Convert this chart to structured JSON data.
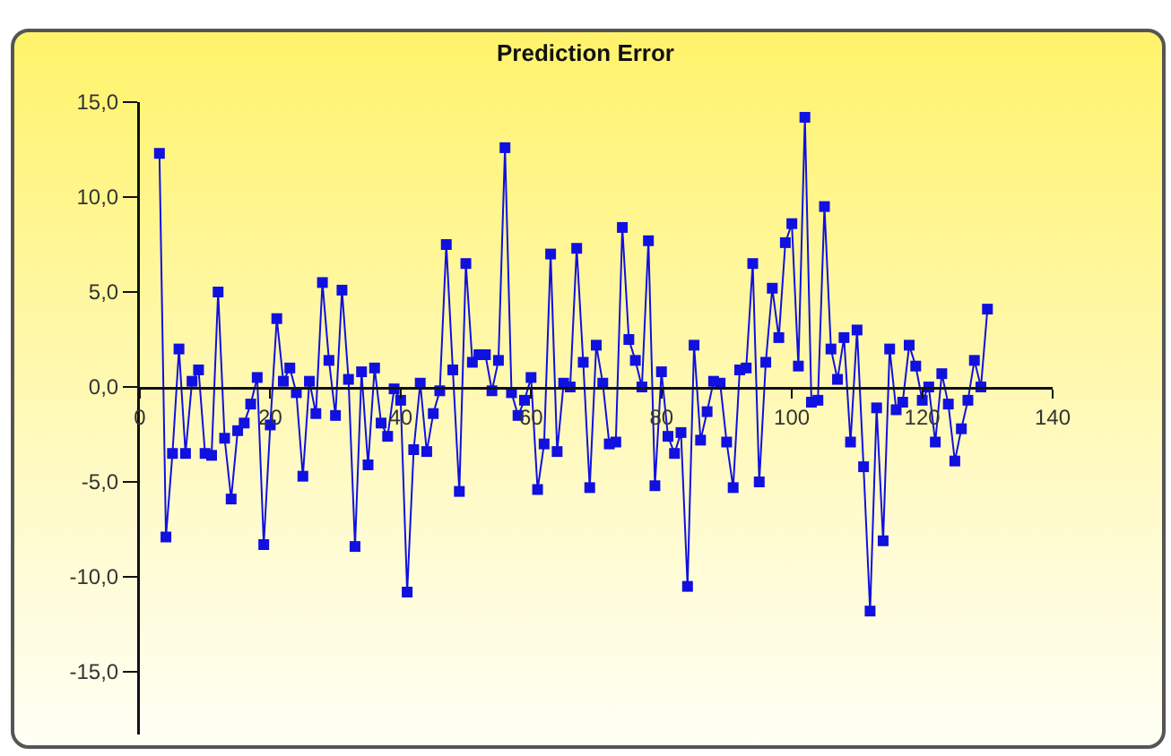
{
  "chart_data": {
    "type": "line",
    "title": "Prediction Error",
    "x": [
      3,
      4,
      5,
      6,
      7,
      8,
      9,
      10,
      11,
      12,
      13,
      14,
      15,
      16,
      17,
      18,
      19,
      20,
      21,
      22,
      23,
      24,
      25,
      26,
      27,
      28,
      29,
      30,
      31,
      32,
      33,
      34,
      35,
      36,
      37,
      38,
      39,
      40,
      41,
      42,
      43,
      44,
      45,
      46,
      47,
      48,
      49,
      50,
      51,
      52,
      53,
      54,
      55,
      56,
      57,
      58,
      59,
      60,
      61,
      62,
      63,
      64,
      65,
      66,
      67,
      68,
      69,
      70,
      71,
      72,
      73,
      74,
      75,
      76,
      77,
      78,
      79,
      80,
      81,
      82,
      83,
      84,
      85,
      86,
      87,
      88,
      89,
      90,
      91,
      92,
      93,
      94,
      95,
      96,
      97,
      98,
      99,
      100,
      101,
      102,
      103,
      104,
      105,
      106,
      107,
      108,
      109,
      110,
      111,
      112,
      113,
      114,
      115,
      116,
      117,
      118,
      119,
      120,
      121,
      122,
      123,
      124,
      125,
      126,
      127,
      128,
      129,
      130
    ],
    "series": [
      {
        "color": "#1010e0",
        "values": [
          12.3,
          -7.9,
          -3.5,
          2.0,
          -3.5,
          0.3,
          0.9,
          -3.5,
          -3.6,
          5.0,
          -2.7,
          -5.9,
          -2.3,
          -1.9,
          -0.9,
          0.5,
          -8.3,
          -2.0,
          3.6,
          0.3,
          1.0,
          -0.3,
          -4.7,
          0.3,
          -1.4,
          5.5,
          1.4,
          -1.5,
          5.1,
          0.4,
          -8.4,
          0.8,
          -4.1,
          1.0,
          -1.9,
          -2.6,
          -0.1,
          -0.7,
          -10.8,
          -3.3,
          0.2,
          -3.4,
          -1.4,
          -0.2,
          7.5,
          0.9,
          -5.5,
          6.5,
          1.3,
          1.7,
          1.7,
          -0.2,
          1.4,
          12.6,
          -0.3,
          -1.5,
          -0.7,
          0.5,
          -5.4,
          -3.0,
          7.0,
          -3.4,
          0.2,
          0.0,
          7.3,
          1.3,
          -5.3,
          2.2,
          0.2,
          -3.0,
          -2.9,
          8.4,
          2.5,
          1.4,
          0.0,
          7.7,
          -5.2,
          0.8,
          -2.6,
          -3.5,
          -2.4,
          -10.5,
          2.2,
          -2.8,
          -1.3,
          0.3,
          0.2,
          -2.9,
          -5.3,
          0.9,
          1.0,
          6.5,
          -5.0,
          1.3,
          5.2,
          2.6,
          7.6,
          8.6,
          1.1,
          14.2,
          -0.8,
          -0.7,
          9.5,
          2.0,
          0.4,
          2.6,
          -2.9,
          3.0,
          -4.2,
          -11.8,
          -1.1,
          -8.1,
          2.0,
          -1.2,
          -0.8,
          2.2,
          1.1,
          -0.7,
          0.0,
          -2.9,
          0.7,
          -0.9,
          -3.9,
          -2.2,
          -0.7,
          1.4,
          0.0,
          4.1
        ]
      }
    ],
    "xlim": [
      0,
      140
    ],
    "xticks": [
      0,
      20,
      40,
      60,
      80,
      100,
      120,
      140
    ],
    "ylim": [
      -18.3,
      15
    ],
    "yticks": [
      {
        "value": 15,
        "label": "15,0"
      },
      {
        "value": 10,
        "label": "10,0"
      },
      {
        "value": 5,
        "label": "5,0"
      },
      {
        "value": 0,
        "label": "0,0"
      },
      {
        "value": -5,
        "label": "-5,0"
      },
      {
        "value": -10,
        "label": "-10,0"
      },
      {
        "value": -15,
        "label": "-15,0"
      }
    ],
    "marker": "square",
    "line_style": "solid",
    "grid": false
  }
}
